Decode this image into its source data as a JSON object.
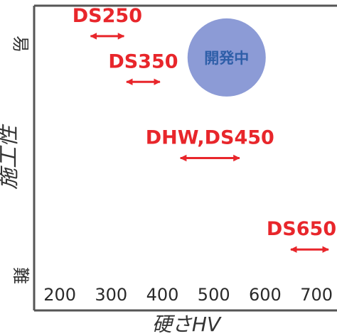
{
  "chart_data": {
    "type": "scatter",
    "title": "",
    "xlabel": "硬さHV",
    "ylabel": "施工性",
    "y_top_label": "易",
    "y_bottom_label": "難",
    "x_ticks": [
      "200",
      "300",
      "400",
      "500",
      "600",
      "700"
    ],
    "xlim": [
      150,
      740
    ],
    "ylim": [
      0,
      10
    ],
    "grid": false,
    "colors": {
      "product": "#e8262b",
      "arrow": "#e8262b",
      "development": "#8c9bd6",
      "development_text": "#2e5ea8",
      "axis": "#555555"
    },
    "series": [
      {
        "label": "DS250",
        "x_range": [
          260,
          325
        ],
        "y": 9.0
      },
      {
        "label": "DS350",
        "x_range": [
          330,
          395
        ],
        "y": 7.5
      },
      {
        "label": "DHW,DS450",
        "x_range": [
          435,
          550
        ],
        "y": 5.0
      },
      {
        "label": "DS650",
        "x_range": [
          650,
          745
        ],
        "y": 2.0
      }
    ],
    "development": {
      "label": "開発中",
      "x": 525,
      "y": 8.3,
      "span_hv": 110
    }
  }
}
